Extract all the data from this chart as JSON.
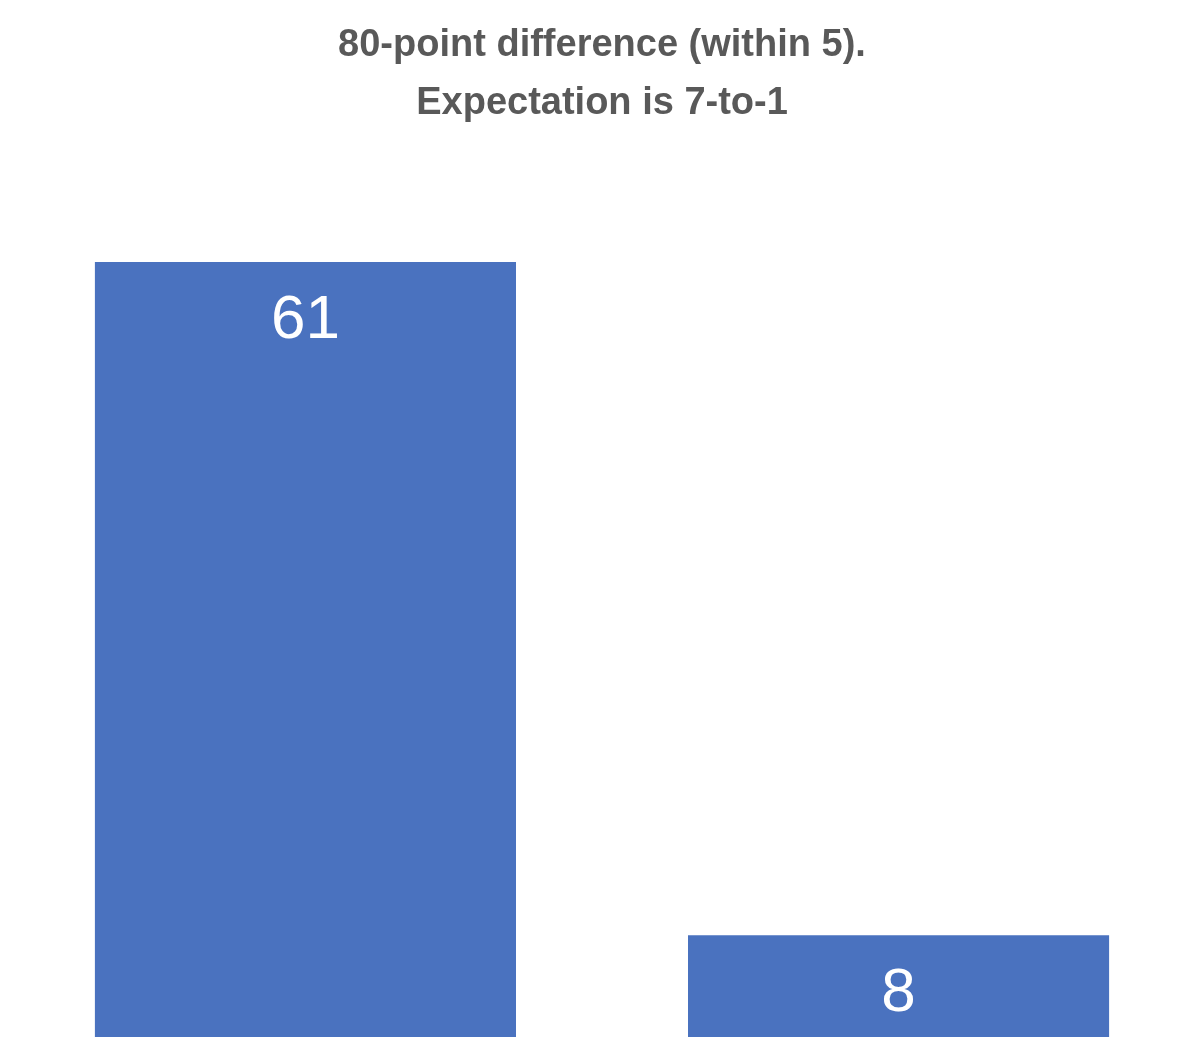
{
  "chart_data": {
    "type": "bar",
    "title": "80-point difference (within 5).\nExpectation is 7-to-1",
    "categories": [
      null,
      null
    ],
    "values": [
      61,
      8
    ],
    "color": "#4a72bf",
    "data_labels": true
  }
}
